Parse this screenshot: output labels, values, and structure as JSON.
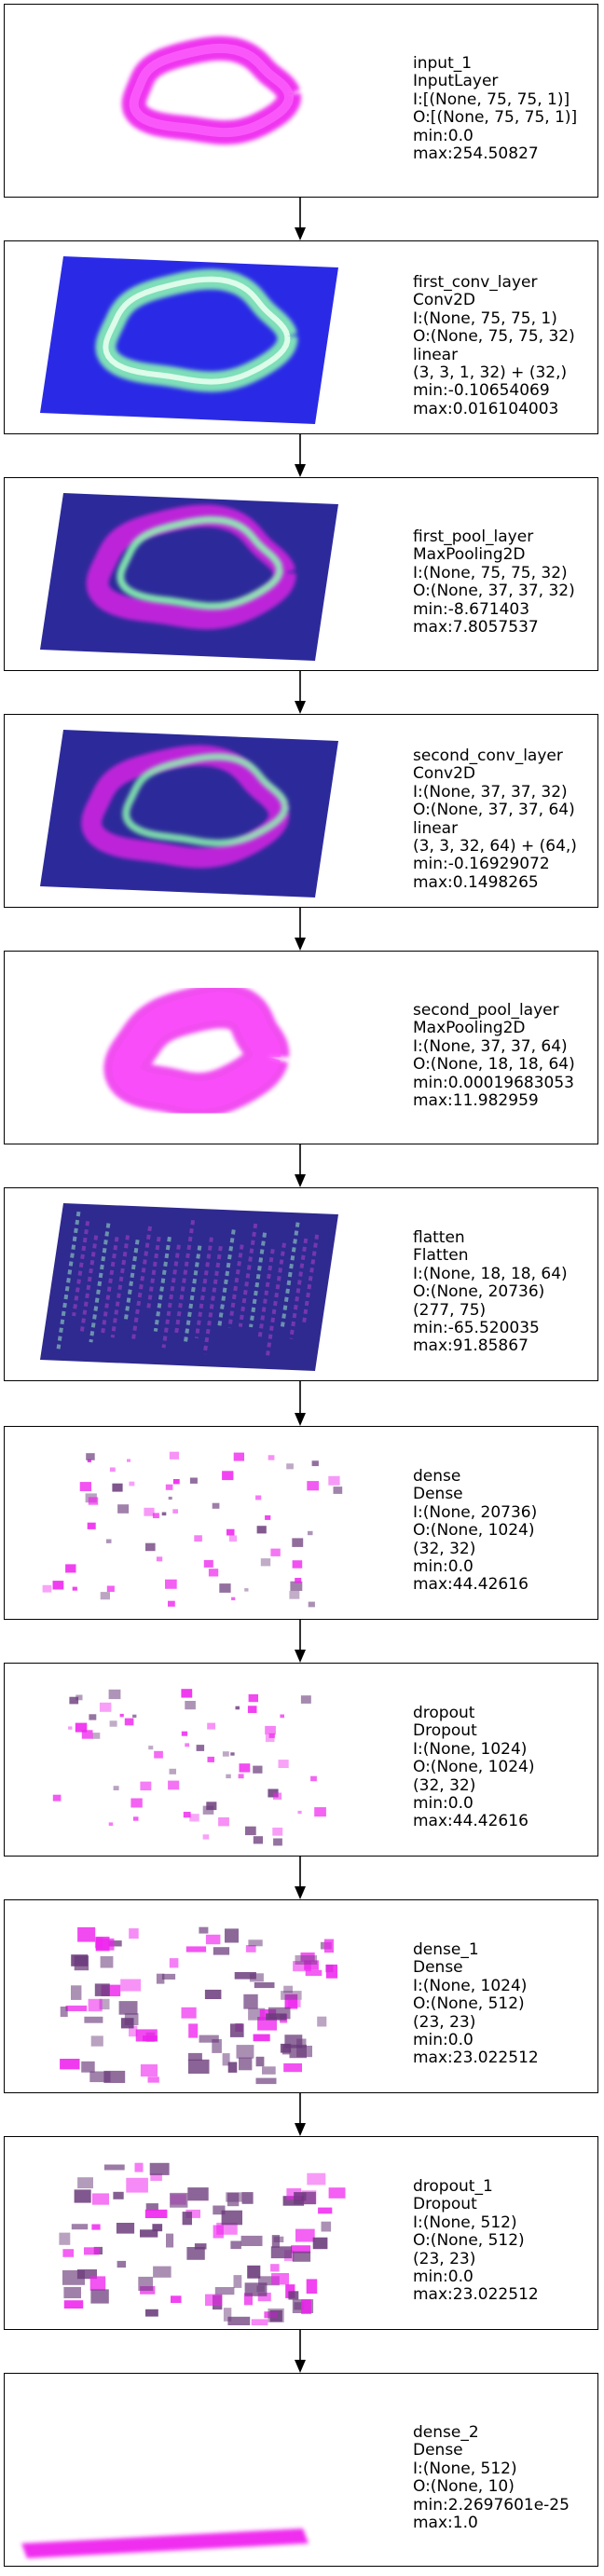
{
  "layers": [
    {
      "name": "input_1",
      "type": "InputLayer",
      "lines": [
        "I:[(None, 75, 75, 1)]",
        "O:[(None, 75, 75, 1)]",
        "min:0.0",
        "max:254.50827"
      ],
      "viz": "ring_input"
    },
    {
      "name": "first_conv_layer",
      "type": "Conv2D",
      "lines": [
        "I:(None, 75, 75, 1)",
        "O:(None, 75, 75, 32)",
        "linear",
        "(3, 3, 1, 32) + (32,)",
        "min:-0.10654069",
        "max:0.016104003"
      ],
      "viz": "conv1"
    },
    {
      "name": "first_pool_layer",
      "type": "MaxPooling2D",
      "lines": [
        "I:(None, 75, 75, 32)",
        "O:(None, 37, 37, 32)",
        "min:-8.671403",
        "max:7.8057537"
      ],
      "viz": "pool1"
    },
    {
      "name": "second_conv_layer",
      "type": "Conv2D",
      "lines": [
        "I:(None, 37, 37, 32)",
        "O:(None, 37, 37, 64)",
        "linear",
        "(3, 3, 32, 64) + (64,)",
        "min:-0.16929072",
        "max:0.1498265"
      ],
      "viz": "conv2"
    },
    {
      "name": "second_pool_layer",
      "type": "MaxPooling2D",
      "lines": [
        "I:(None, 37, 37, 64)",
        "O:(None, 18, 18, 64)",
        "min:0.00019683053",
        "max:11.982959"
      ],
      "viz": "pool2"
    },
    {
      "name": "flatten",
      "type": "Flatten",
      "lines": [
        "I:(None, 18, 18, 64)",
        "O:(None, 20736)",
        "(277, 75)",
        "min:-65.520035",
        "max:91.85867"
      ],
      "viz": "flatten"
    },
    {
      "name": "dense",
      "type": "Dense",
      "lines": [
        "I:(None, 20736)",
        "O:(None, 1024)",
        "(32, 32)",
        "min:0.0",
        "max:44.42616"
      ],
      "viz": "sparse"
    },
    {
      "name": "dropout",
      "type": "Dropout",
      "lines": [
        "I:(None, 1024)",
        "O:(None, 1024)",
        "(32, 32)",
        "min:0.0",
        "max:44.42616"
      ],
      "viz": "sparse"
    },
    {
      "name": "dense_1",
      "type": "Dense",
      "lines": [
        "I:(None, 1024)",
        "O:(None, 512)",
        "(23, 23)",
        "min:0.0",
        "max:23.022512"
      ],
      "viz": "dense_blocks"
    },
    {
      "name": "dropout_1",
      "type": "Dropout",
      "lines": [
        "I:(None, 512)",
        "O:(None, 512)",
        "(23, 23)",
        "min:0.0",
        "max:23.022512"
      ],
      "viz": "dense_blocks"
    },
    {
      "name": "dense_2",
      "type": "Dense",
      "lines": [
        "I:(None, 512)",
        "O:(None, 10)",
        "min:2.2697601e-25",
        "max:1.0"
      ],
      "viz": "bar"
    }
  ],
  "colors": {
    "blue": "#2a2ae6",
    "magenta": "#ee22ee",
    "green": "#8dffb0",
    "purple": "#6a3a7a"
  }
}
